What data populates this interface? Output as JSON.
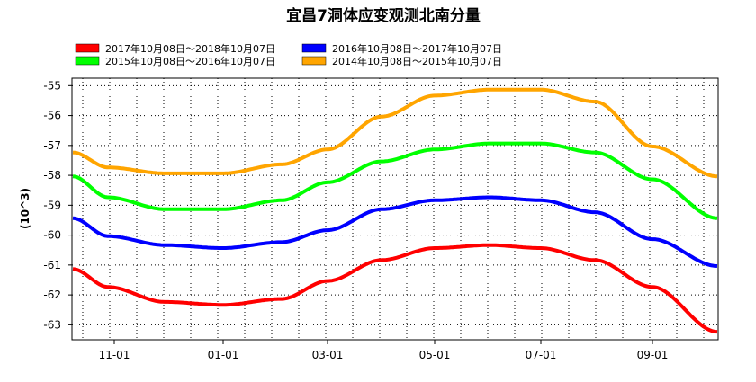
{
  "chart_data": {
    "type": "line",
    "title": "宜昌7洞体应变观测北南分量",
    "xlabel": "",
    "ylabel": "(10^3)",
    "ylim": [
      -63.5,
      -55
    ],
    "y_ticks": [
      -55,
      -56,
      -57,
      -58,
      -59,
      -60,
      -61,
      -62,
      -63
    ],
    "x_tick_labels": [
      "11-01",
      "01-01",
      "03-01",
      "05-01",
      "07-01",
      "09-01"
    ],
    "x": [
      "10-08",
      "11-01",
      "12-01",
      "01-01",
      "02-01",
      "03-01",
      "04-01",
      "05-01",
      "06-01",
      "07-01",
      "08-01",
      "09-01",
      "10-07"
    ],
    "grid": true,
    "legend_position": "top",
    "series": [
      {
        "name": "2017年10月08日～2018年10月07日",
        "color": "#ff0000",
        "values": [
          -61.2,
          -61.8,
          -62.3,
          -62.4,
          -62.2,
          -61.6,
          -60.9,
          -60.5,
          -60.4,
          -60.5,
          -60.9,
          -61.8,
          -63.3
        ]
      },
      {
        "name": "2016年10月08日～2017年10月07日",
        "color": "#0000ff",
        "values": [
          -59.5,
          -60.1,
          -60.4,
          -60.5,
          -60.3,
          -59.9,
          -59.2,
          -58.9,
          -58.8,
          -58.9,
          -59.3,
          -60.2,
          -61.1
        ]
      },
      {
        "name": "2015年10月08日～2016年10月07日",
        "color": "#00ff00",
        "values": [
          -58.1,
          -58.8,
          -59.2,
          -59.2,
          -58.9,
          -58.3,
          -57.6,
          -57.2,
          -57.0,
          -57.0,
          -57.3,
          -58.2,
          -59.5
        ]
      },
      {
        "name": "2014年10月08日～2015年10月07日",
        "color": "#ffa500",
        "values": [
          -57.3,
          -57.8,
          -58.0,
          -58.0,
          -57.7,
          -57.2,
          -56.1,
          -55.4,
          -55.2,
          -55.2,
          -55.6,
          -57.1,
          -58.1
        ]
      }
    ]
  }
}
